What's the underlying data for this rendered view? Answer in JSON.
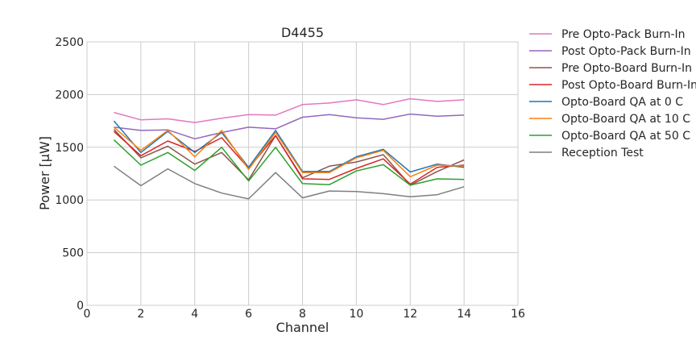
{
  "chart_data": {
    "type": "line",
    "title": "D4455",
    "xlabel": "Channel",
    "ylabel": "Power [μW]",
    "xlim": [
      0,
      16
    ],
    "ylim": [
      0,
      2500
    ],
    "xticks": [
      "0",
      "2",
      "4",
      "6",
      "8",
      "10",
      "12",
      "14",
      "16"
    ],
    "yticks": [
      "0",
      "500",
      "1000",
      "1500",
      "2000",
      "2500"
    ],
    "grid": true,
    "legend_position": "outside-right",
    "x": [
      1,
      2,
      3,
      4,
      5,
      6,
      7,
      8,
      9,
      10,
      11,
      12,
      13,
      14
    ],
    "series": [
      {
        "name": "Pre Opto-Pack Burn-In",
        "color": "#e377c2",
        "values": [
          1830,
          1760,
          1770,
          1735,
          1775,
          1810,
          1805,
          1905,
          1920,
          1950,
          1905,
          1960,
          1935,
          1950
        ]
      },
      {
        "name": "Post Opto-Pack Burn-In",
        "color": "#9467bd",
        "values": [
          1690,
          1660,
          1665,
          1580,
          1640,
          1690,
          1675,
          1785,
          1810,
          1780,
          1765,
          1815,
          1795,
          1805
        ]
      },
      {
        "name": "Pre Opto-Board Burn-In",
        "color": "#8c564b",
        "values": [
          1670,
          1400,
          1510,
          1340,
          1450,
          1190,
          1610,
          1210,
          1320,
          1360,
          1430,
          1140,
          1270,
          1380
        ]
      },
      {
        "name": "Post Opto-Board Burn-In",
        "color": "#d62728",
        "values": [
          1650,
          1420,
          1560,
          1460,
          1590,
          1300,
          1610,
          1200,
          1195,
          1300,
          1390,
          1150,
          1310,
          1330
        ]
      },
      {
        "name": "Opto-Board QA at 0 C",
        "color": "#1f77b4",
        "values": [
          1750,
          1450,
          1650,
          1450,
          1640,
          1310,
          1660,
          1270,
          1270,
          1410,
          1480,
          1265,
          1340,
          1310
        ]
      },
      {
        "name": "Opto-Board QA at 10 C",
        "color": "#ff7f0e",
        "values": [
          1690,
          1470,
          1660,
          1410,
          1660,
          1290,
          1640,
          1260,
          1260,
          1400,
          1470,
          1220,
          1330,
          1320
        ]
      },
      {
        "name": "Opto-Board QA at 50 C",
        "color": "#2ca02c",
        "values": [
          1570,
          1330,
          1450,
          1280,
          1500,
          1180,
          1500,
          1155,
          1145,
          1275,
          1335,
          1140,
          1200,
          1195
        ]
      },
      {
        "name": "Reception Test",
        "color": "#7f7f7f",
        "values": [
          1320,
          1135,
          1295,
          1155,
          1065,
          1010,
          1260,
          1020,
          1085,
          1080,
          1060,
          1030,
          1050,
          1125
        ]
      }
    ]
  }
}
